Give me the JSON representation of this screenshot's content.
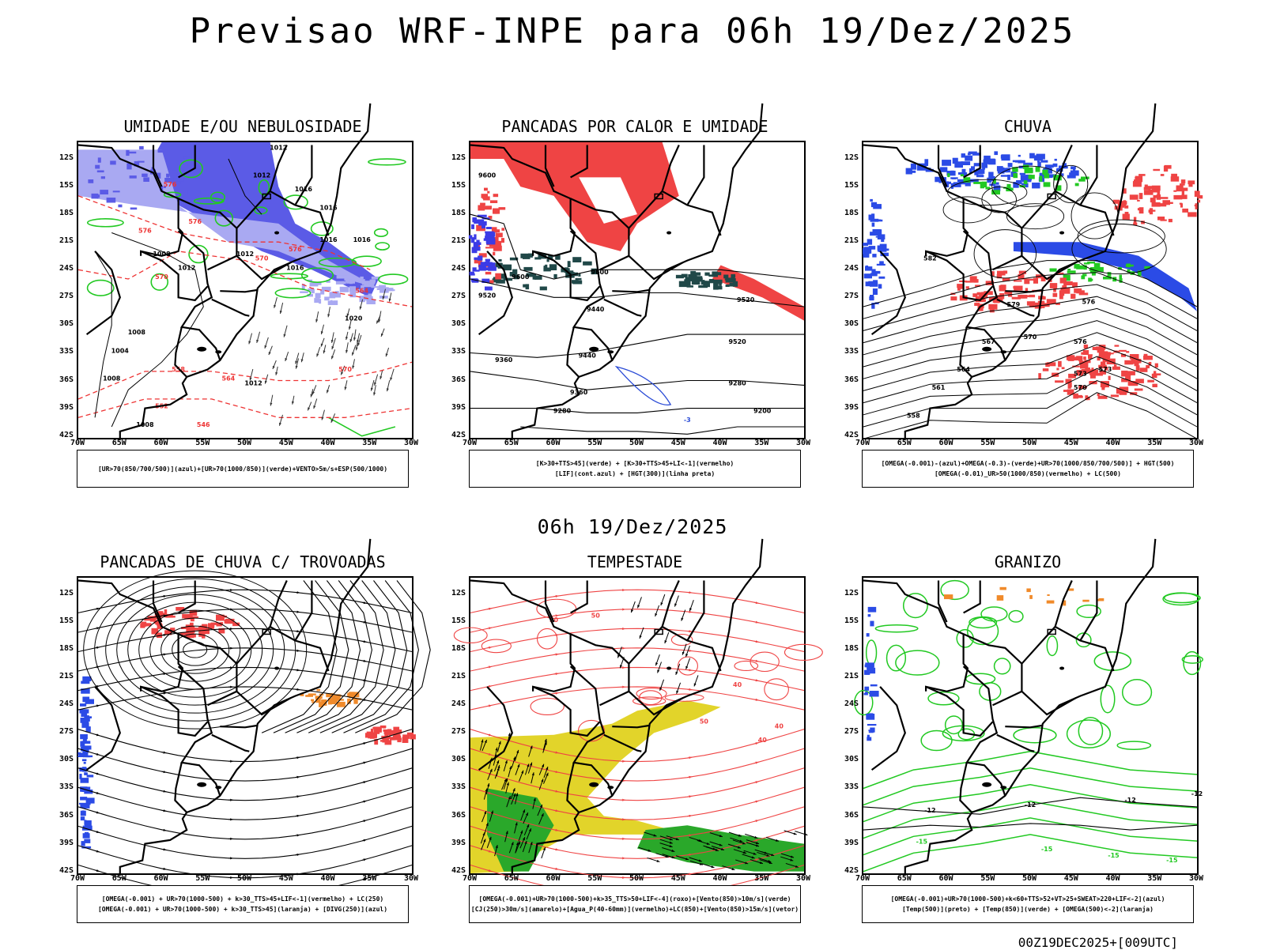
{
  "title": "Previsao WRF-INPE  para 06h 19/Dez/2025",
  "mid_title": "06h 19/Dez/2025",
  "footer": "00Z19DEC2025+[009UTC]",
  "lat_labels": [
    "12S",
    "15S",
    "18S",
    "21S",
    "24S",
    "27S",
    "30S",
    "33S",
    "36S",
    "39S",
    "42S"
  ],
  "lon_labels": [
    "70W",
    "65W",
    "60W",
    "55W",
    "50W",
    "45W",
    "40W",
    "35W",
    "30W"
  ],
  "panels": [
    {
      "title": "UMIDADE E/OU NEBULOSIDADE",
      "legend": [
        "[UR>70(850/700/500)](azul)+[UR>70(1000/850)](verde)+VENTO>5m/s+ESP(500/1000)"
      ],
      "contour_labels": [
        "1012",
        "1012",
        "1016",
        "1016",
        "1016",
        "1016",
        "1008",
        "1012",
        "1012",
        "1016",
        "1020",
        "1008",
        "1004",
        "1012",
        "1008",
        "1008",
        "576",
        "576",
        "576",
        "576",
        "570",
        "564",
        "558",
        "564",
        "570",
        "570",
        "552",
        "546"
      ]
    },
    {
      "title": "PANCADAS POR CALOR E UMIDADE",
      "legend": [
        "[K>30+TTS>45](verde) + [K>30+TTS>45+LI<-1](vermelho)",
        "[LIF](cont.azul) + [HGT(300)](linha preta)"
      ],
      "contour_labels": [
        "9600",
        "9520",
        "9600",
        "9600",
        "9520",
        "9520",
        "9440",
        "9440",
        "9360",
        "9360",
        "9280",
        "9280",
        "9200",
        "-3"
      ]
    },
    {
      "title": "CHUVA",
      "legend": [
        "[OMEGA(-0.001)-(azul)+OMEGA(-0.3)-(verde)+UR>70(1000/850/700/500)] + HGT(500)",
        "[OMEGA(-0.01)_UR>50(1000/850)(vermelho) + LC(500)"
      ],
      "contour_labels": [
        "582",
        "579",
        "576",
        "573",
        "570",
        "567",
        "564",
        "561",
        "558",
        "576",
        "573",
        "570"
      ]
    },
    {
      "title": "PANCADAS DE CHUVA C/ TROVOADAS",
      "legend": [
        "[OMEGA(-0.001) + UR>70(1000-500) + k>30_TTS>45+LIF<-1](vermelho) + LC(250)",
        "[OMEGA(-0.001) + UR>70(1000-500) + k>30_TTS>45](laranja) + [DIVG(250)](azul)"
      ],
      "contour_labels": []
    },
    {
      "title": "TEMPESTADE",
      "legend": [
        "[OMEGA(-0.001)+UR>70(1000-500)+k>35_TTS>50+LIF<-4](roxo)+[Vento(850)>10m/s](verde)",
        "[CJ(250)>30m/s](amarelo)+[Agua_P(40-60mm)](vermelho)+LC(850)+[Vento(850)>15m/s](vetor)"
      ],
      "contour_labels": [
        "50",
        "50",
        "40",
        "40",
        "40",
        "50"
      ]
    },
    {
      "title": "GRANIZO",
      "legend": [
        "[OMEGA(-0.001)+UR>70(1000-500)+k<60+TTS>52+VT>25+SWEAT>220+LIF<-2](azul)",
        "[Temp(500)](preto) + [Temp(850)](verde) + [OMEGA(500)<-2](laranja)"
      ],
      "contour_labels": [
        "-12",
        "-12",
        "-12",
        "-12",
        "-15",
        "-15",
        "-15",
        "-15"
      ]
    }
  ]
}
